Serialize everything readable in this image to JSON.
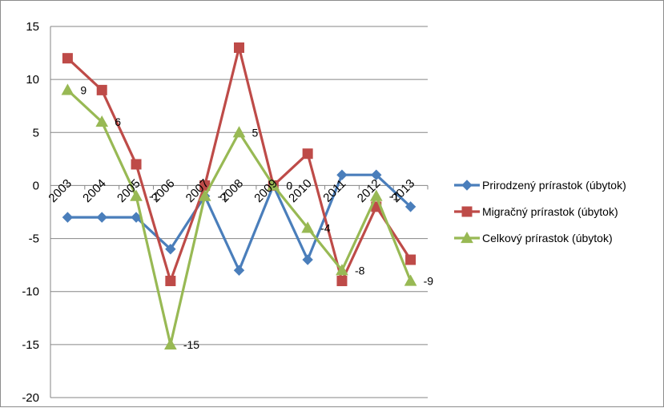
{
  "chart_data": {
    "type": "line",
    "title": "",
    "xlabel": "",
    "ylabel": "",
    "ylim": [
      -20,
      15
    ],
    "yticks": [
      15,
      10,
      5,
      0,
      -5,
      -10,
      -15,
      -20
    ],
    "grid": true,
    "legend_position": "right",
    "categories": [
      "2003",
      "2004",
      "2005",
      "2006",
      "2007",
      "2008",
      "2009",
      "2010",
      "2011",
      "2012",
      "2013"
    ],
    "series": [
      {
        "name": "Prirodzený prírastok (úbytok)",
        "color": "#4a7ebb",
        "marker": "diamond",
        "values": [
          -3,
          -3,
          -3,
          -6,
          -1,
          -8,
          0,
          -7,
          1,
          1,
          -2
        ]
      },
      {
        "name": "Migračný prírastok (úbytok)",
        "color": "#be4b48",
        "marker": "square",
        "values": [
          12,
          9,
          2,
          -9,
          0,
          13,
          0,
          3,
          -9,
          -2,
          -7
        ]
      },
      {
        "name": "Celkový prírastok (úbytok)",
        "color": "#98b954",
        "marker": "triangle",
        "values": [
          9,
          6,
          -1,
          -15,
          -1,
          5,
          0,
          -4,
          -8,
          -1,
          -9
        ],
        "data_labels": [
          "9",
          "6",
          "-1",
          "-15",
          "-1",
          "5",
          "0",
          "-4",
          "-8",
          "-1",
          "-9"
        ]
      }
    ]
  }
}
